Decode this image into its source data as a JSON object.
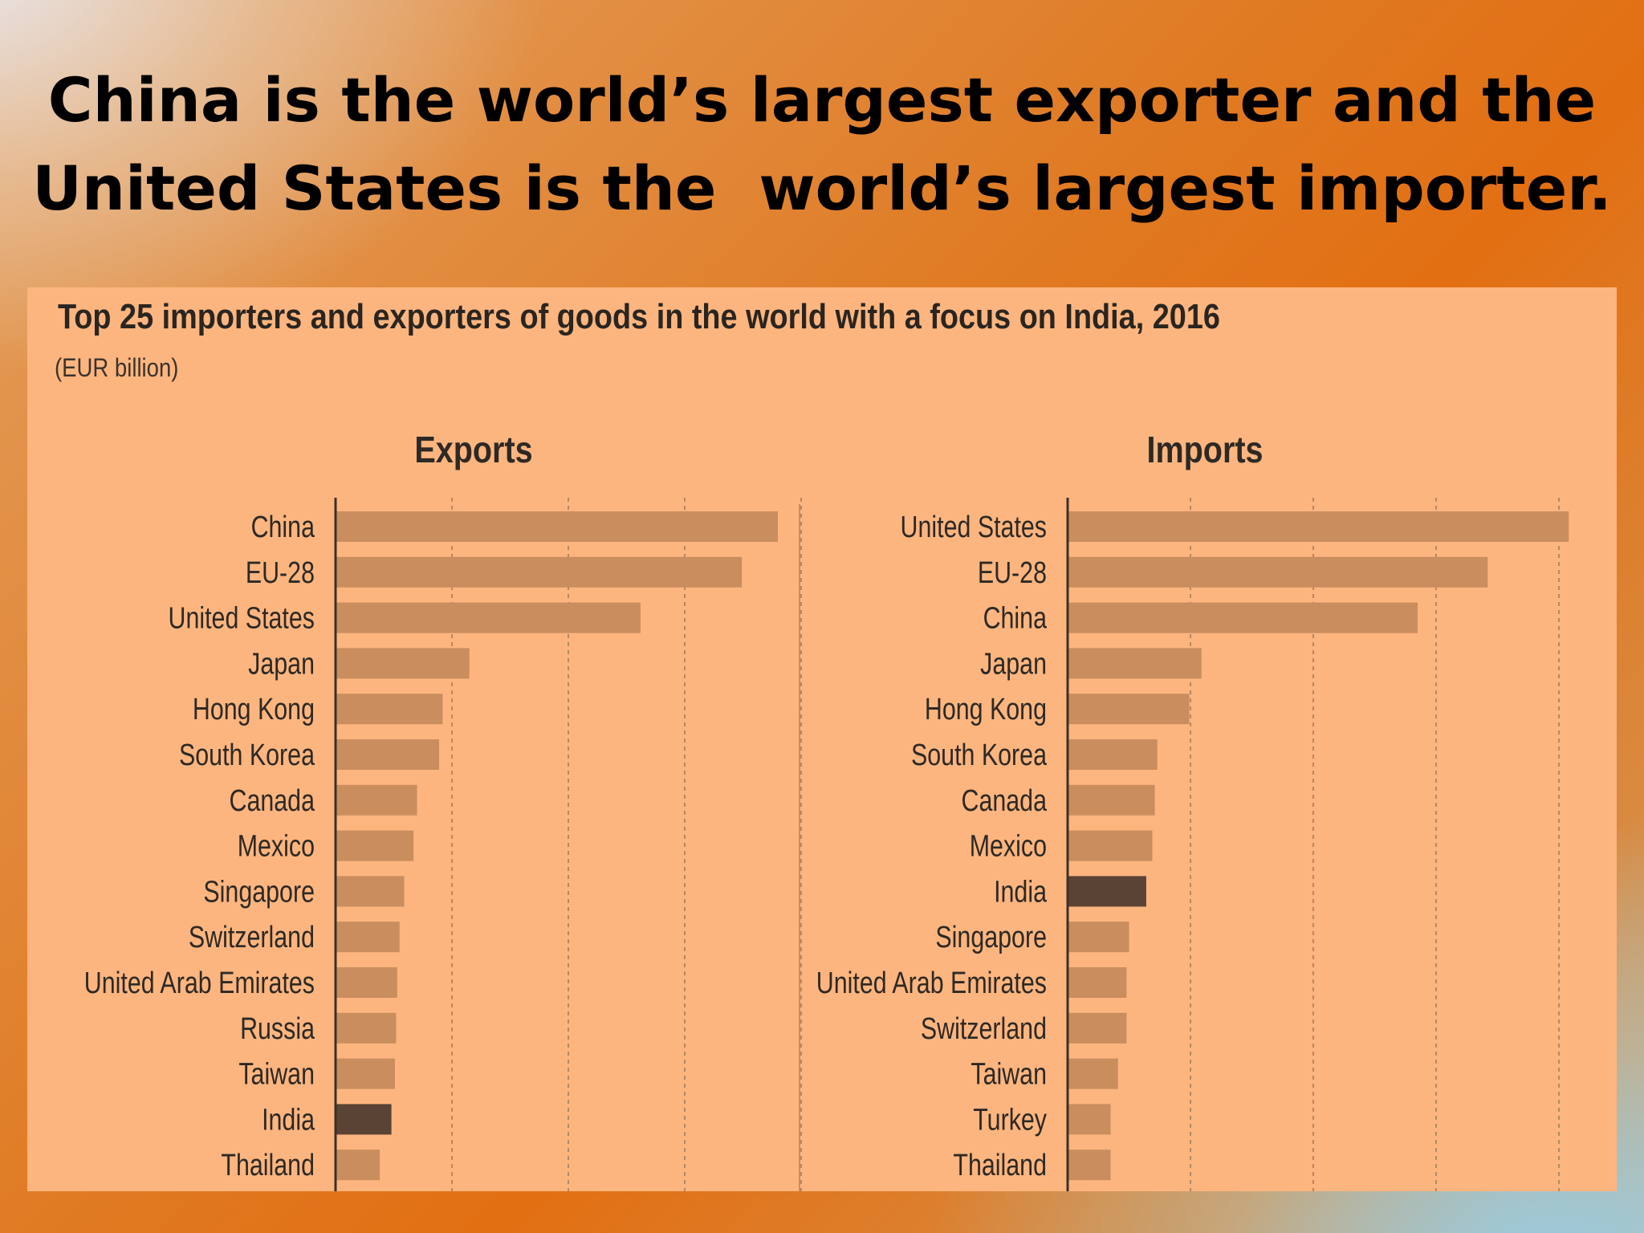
{
  "slide": {
    "title_line1": "China is the world’s largest exporter and the",
    "title_line2": "United States is the  world’s largest importer."
  },
  "colors": {
    "panel_bg": "#fdb57f",
    "bar": "#c98d5e",
    "bar_highlight": "#5a4334",
    "axis": "#3d3026",
    "grid": "#8a6a50"
  },
  "chart_data": {
    "type": "bar",
    "orientation": "horizontal",
    "title": "Top 25 importers and exporters of goods in the world with a focus on India, 2016",
    "unit": "(EUR billion)",
    "grid": true,
    "xlim": [
      0,
      2000
    ],
    "highlight": "India",
    "panels": [
      {
        "key": "exports",
        "subtitle": "Exports",
        "categories": [
          "China",
          "EU-28",
          "United States",
          "Japan",
          "Hong Kong",
          "South Korea",
          "Canada",
          "Mexico",
          "Singapore",
          "Switzerland",
          "United Arab Emirates",
          "Russia",
          "Taiwan",
          "India",
          "Thailand"
        ],
        "values": [
          1900,
          1745,
          1310,
          575,
          460,
          445,
          350,
          335,
          295,
          275,
          265,
          260,
          255,
          240,
          190
        ]
      },
      {
        "key": "imports",
        "subtitle": "Imports",
        "categories": [
          "United States",
          "EU-28",
          "China",
          "Japan",
          "Hong Kong",
          "South Korea",
          "Canada",
          "Mexico",
          "India",
          "Singapore",
          "United Arab Emirates",
          "Switzerland",
          "Taiwan",
          "Turkey",
          "Thailand"
        ],
        "values": [
          2040,
          1710,
          1425,
          545,
          495,
          365,
          355,
          345,
          320,
          250,
          240,
          240,
          205,
          175,
          175
        ]
      }
    ]
  }
}
